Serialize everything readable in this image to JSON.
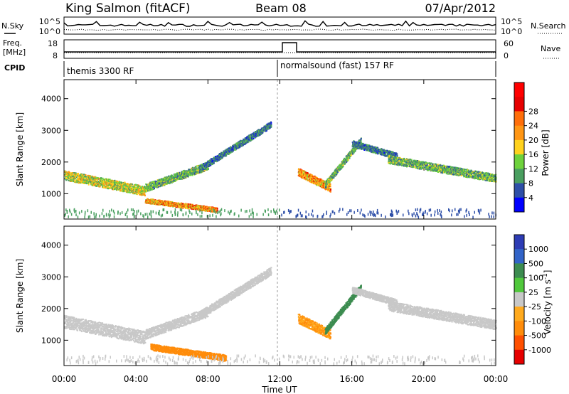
{
  "header": {
    "station": "King Salmon (fitACF)",
    "beam": "Beam 08",
    "date": "07/Apr/2012"
  },
  "noise_panel": {
    "left_label": "N.Sky",
    "right_label": "N.Search",
    "left_ticks": [
      "10^5",
      "10^0"
    ],
    "right_ticks": [
      "10^5",
      "10^0"
    ]
  },
  "freq_panel": {
    "left_label_1": "Freq.",
    "left_label_2": "[MHz]",
    "right_label": "Nave",
    "left_ticks": [
      "18",
      "8"
    ],
    "right_ticks": [
      "60",
      "0"
    ]
  },
  "cpid": {
    "label": "CPID",
    "mode_1": "themis 3300 RF",
    "mode_2": "normalsound (fast) 157 RF"
  },
  "x_axis": {
    "ticks": [
      "00:00",
      "04:00",
      "08:00",
      "12:00",
      "16:00",
      "20:00",
      "00:00"
    ],
    "label": "Time UT"
  },
  "colors": {
    "power": [
      "#0000ff",
      "#2e4fa8",
      "#4a9f60",
      "#6ed23c",
      "#ffd21e",
      "#ff9614",
      "#ff6e0a",
      "#e60000",
      "#ff0000"
    ],
    "velocity": [
      "#2d3cb4",
      "#3264c8",
      "#3c8c50",
      "#50c83c",
      "#c8c8c8",
      "#ffaa1e",
      "#ff8c0a",
      "#ff5000",
      "#e60000"
    ]
  },
  "chart_data": [
    {
      "type": "heatmap",
      "title": "",
      "xlabel": "Time UT",
      "ylabel": "Slant Range [km]",
      "xlim": [
        0,
        24
      ],
      "ylim": [
        200,
        4600
      ],
      "y_ticks": [
        "1000",
        "2000",
        "3000",
        "4000"
      ],
      "colorbar_label": "Power [dB]",
      "colorbar_ticks": [
        "4",
        "8",
        "12",
        "16",
        "20",
        "24",
        "28"
      ],
      "colorbar_range": [
        0,
        32
      ],
      "features": [
        {
          "t_start": 0.0,
          "t_end": 4.5,
          "range_start": 1600,
          "range_end": 1100,
          "width_km": 300,
          "value": 16
        },
        {
          "t_start": 4.5,
          "t_end": 8.0,
          "range_start": 1200,
          "range_end": 1900,
          "width_km": 250,
          "value": 12
        },
        {
          "t_start": 7.5,
          "t_end": 11.5,
          "range_start": 1800,
          "range_end": 3200,
          "width_km": 200,
          "value": 8
        },
        {
          "t_start": 4.5,
          "t_end": 8.5,
          "range_start": 800,
          "range_end": 500,
          "width_km": 150,
          "value": 22
        },
        {
          "t_start": 13.0,
          "t_end": 14.8,
          "range_start": 1700,
          "range_end": 1200,
          "width_km": 250,
          "value": 22
        },
        {
          "t_start": 14.5,
          "t_end": 16.5,
          "range_start": 1300,
          "range_end": 2700,
          "width_km": 200,
          "value": 12
        },
        {
          "t_start": 16.0,
          "t_end": 18.5,
          "range_start": 2600,
          "range_end": 2200,
          "width_km": 200,
          "value": 8
        },
        {
          "t_start": 18.0,
          "t_end": 24.0,
          "range_start": 2100,
          "range_end": 1500,
          "width_km": 250,
          "value": 12
        }
      ]
    },
    {
      "type": "heatmap",
      "title": "",
      "xlabel": "Time UT",
      "ylabel": "Slant Range [km]",
      "xlim": [
        0,
        24
      ],
      "ylim": [
        200,
        4600
      ],
      "y_ticks": [
        "1000",
        "2000",
        "3000",
        "4000"
      ],
      "colorbar_label": "Velocity [m s^-1]",
      "colorbar_ticks": [
        "1000",
        "500",
        "100",
        "25",
        "-25",
        "-100",
        "-500",
        "-1000"
      ],
      "colorbar_range": [
        -1200,
        1200
      ],
      "features": [
        {
          "t_start": 0.0,
          "t_end": 4.5,
          "range_start": 1600,
          "range_end": 1100,
          "width_km": 400,
          "value": 0
        },
        {
          "t_start": 4.5,
          "t_end": 8.0,
          "range_start": 1200,
          "range_end": 1900,
          "width_km": 300,
          "value": 0
        },
        {
          "t_start": 7.5,
          "t_end": 11.5,
          "range_start": 1800,
          "range_end": 3200,
          "width_km": 250,
          "value": 0
        },
        {
          "t_start": 4.8,
          "t_end": 9.0,
          "range_start": 800,
          "range_end": 450,
          "width_km": 200,
          "value": -150
        },
        {
          "t_start": 13.0,
          "t_end": 14.8,
          "range_start": 1700,
          "range_end": 1200,
          "width_km": 300,
          "value": -100
        },
        {
          "t_start": 14.5,
          "t_end": 16.5,
          "range_start": 1300,
          "range_end": 2700,
          "width_km": 200,
          "value": 60
        },
        {
          "t_start": 16.0,
          "t_end": 18.5,
          "range_start": 2600,
          "range_end": 2200,
          "width_km": 200,
          "value": 0
        },
        {
          "t_start": 18.0,
          "t_end": 24.0,
          "range_start": 2100,
          "range_end": 1500,
          "width_km": 300,
          "value": 0
        }
      ]
    }
  ]
}
